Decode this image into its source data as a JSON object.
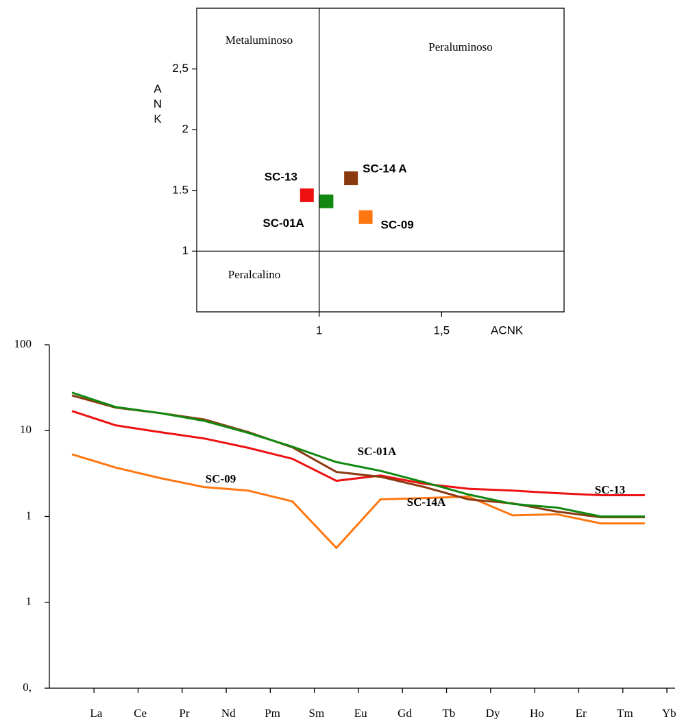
{
  "chart_data": [
    {
      "type": "scatter",
      "xlabel": "ACNK",
      "ylabel": "ANK",
      "xlim": [
        0.5,
        2.0
      ],
      "ylim": [
        0.5,
        3.0
      ],
      "xticks": [
        1,
        {
          "value": 1.5,
          "label": "1,5"
        }
      ],
      "yticks": [
        1,
        1.5,
        2,
        {
          "value": 2.5,
          "label": "2,5"
        }
      ],
      "annotations": [
        "Metaluminoso",
        "Peraluminoso",
        "Peralcalino"
      ],
      "series": [
        {
          "name": "SC-13",
          "color": "#ee1111",
          "x": [
            0.95
          ],
          "values": [
            1.46
          ]
        },
        {
          "name": "SC-01A",
          "color": "#118811",
          "x": [
            1.03
          ],
          "values": [
            1.41
          ]
        },
        {
          "name": "SC-14 A",
          "color": "#8b3a10",
          "x": [
            1.13
          ],
          "values": [
            1.6
          ]
        },
        {
          "name": "SC-09",
          "color": "#ff7711",
          "x": [
            1.19
          ],
          "values": [
            1.28
          ]
        }
      ]
    },
    {
      "type": "line",
      "log_scale": true,
      "categories": [
        "La",
        "Ce",
        "Pr",
        "Nd",
        "Pm",
        "Sm",
        "Eu",
        "Gd",
        "Tb",
        "Dy",
        "Ho",
        "Er",
        "Tm",
        "Yb"
      ],
      "ylim": [
        0.01,
        100
      ],
      "yticks": [
        100,
        10,
        1,
        {
          "value": 0.1,
          "label": "1"
        },
        {
          "value": 0.01,
          "label": "0,"
        }
      ],
      "series": [
        {
          "name": "SC-09",
          "color": "#ff7711",
          "values": [
            5.3,
            3.7,
            2.8,
            2.2,
            2.0,
            1.5,
            0.43,
            1.58,
            1.64,
            1.7,
            1.03,
            1.06,
            0.83,
            0.83
          ]
        },
        {
          "name": "SC-13",
          "color": "#ee1111",
          "values": [
            16.9,
            11.5,
            9.6,
            8.1,
            6.3,
            4.7,
            2.6,
            3.0,
            2.4,
            2.1,
            2.0,
            1.87,
            1.77,
            1.77
          ]
        },
        {
          "name": "SC-14A",
          "color": "#8b3a10",
          "values": [
            25.7,
            18.5,
            16,
            13.5,
            9.6,
            6.4,
            3.3,
            2.9,
            2.2,
            1.58,
            1.42,
            1.14,
            0.98,
            0.98
          ]
        },
        {
          "name": "SC-01A",
          "color": "#118811",
          "values": [
            27.7,
            18.8,
            16,
            13,
            9.4,
            6.5,
            4.3,
            3.4,
            2.5,
            1.8,
            1.4,
            1.27,
            1.0,
            1.0
          ]
        }
      ]
    }
  ]
}
